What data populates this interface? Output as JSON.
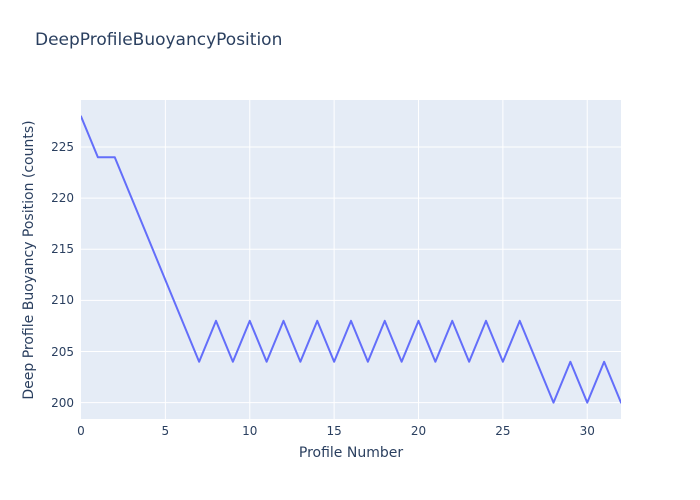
{
  "chart_data": {
    "type": "line",
    "title": "DeepProfileBuoyancyPosition",
    "xlabel": "Profile Number",
    "ylabel": "Deep Profile Buoyancy Position (counts)",
    "x": [
      0,
      1,
      2,
      3,
      4,
      5,
      6,
      7,
      8,
      9,
      10,
      11,
      12,
      13,
      14,
      15,
      16,
      17,
      18,
      19,
      20,
      21,
      22,
      23,
      24,
      25,
      26,
      27,
      28,
      29,
      30,
      31,
      32
    ],
    "y": [
      228,
      224,
      224,
      220,
      216,
      212,
      208,
      204,
      208,
      204,
      208,
      204,
      208,
      204,
      208,
      204,
      208,
      204,
      208,
      204,
      208,
      204,
      208,
      204,
      208,
      204,
      208,
      204,
      200,
      204,
      200,
      204,
      200
    ],
    "xlim": [
      0,
      32
    ],
    "ylim": [
      198.4,
      229.6
    ],
    "xticks": [
      0,
      5,
      10,
      15,
      20,
      25,
      30
    ],
    "yticks": [
      200,
      205,
      210,
      215,
      220,
      225
    ],
    "grid": true,
    "legend": false,
    "line_color": "#636efa",
    "plot_bg_color": "#e5ecf6",
    "grid_color": "#ffffff",
    "text_color": "#2a3f5f",
    "line_width": 2
  }
}
